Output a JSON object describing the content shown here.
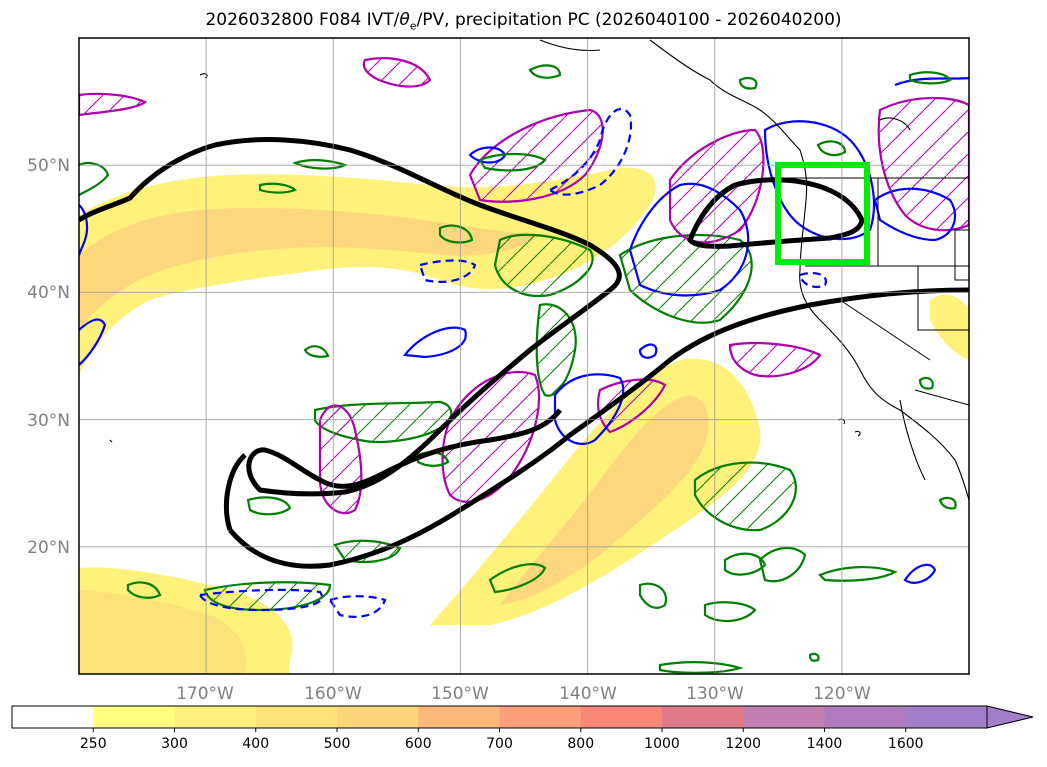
{
  "title": {
    "prefix": "2026032800 F084 IVT/",
    "theta": "θ",
    "theta_sub": "e",
    "suffix": "/PV, precipitation PC (2026040100 - 2026040200)"
  },
  "map": {
    "lat_labels": [
      "50°N",
      "40°N",
      "30°N",
      "20°N"
    ],
    "lon_labels": [
      "170°W",
      "160°W",
      "150°W",
      "140°W",
      "130°W",
      "120°W"
    ],
    "lat_values": [
      50,
      40,
      30,
      20
    ],
    "lon_values": [
      -170,
      -160,
      -150,
      -140,
      -130,
      -120
    ],
    "extent": {
      "lon_min": -180,
      "lon_max": -110,
      "lat_min": 10,
      "lat_max": 60
    },
    "highlight_box": {
      "lon_min": -125,
      "lon_max": -118,
      "lat_min": 42.3,
      "lat_max": 50,
      "color": "#00ee00"
    }
  },
  "colorbar": {
    "levels": [
      "250",
      "300",
      "400",
      "500",
      "600",
      "700",
      "800",
      "1000",
      "1200",
      "1400",
      "1600"
    ],
    "colors": [
      "#ffffff",
      "#ffff80",
      "#fef07c",
      "#fde27a",
      "#fdd57b",
      "#fcb87a",
      "#fc9f7b",
      "#f78878",
      "#e07b8c",
      "#c47fb2",
      "#b07cbf",
      "#a37ec8"
    ],
    "extend": "max"
  },
  "legend_colors": {
    "theta_e": "#000000",
    "pv_positive": "#008000",
    "pv_negative": "#0000ff",
    "precip_pc": "#b000b0",
    "coastline": "#000000"
  }
}
